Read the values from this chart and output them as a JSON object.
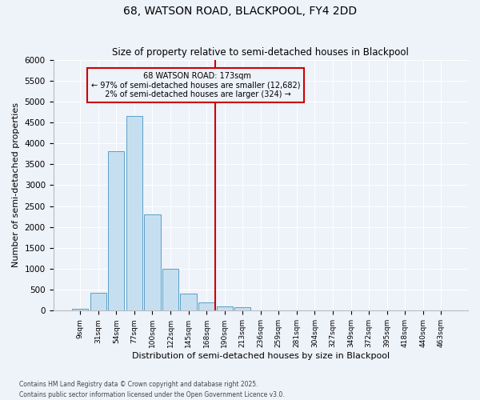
{
  "title": "68, WATSON ROAD, BLACKPOOL, FY4 2DD",
  "subtitle": "Size of property relative to semi-detached houses in Blackpool",
  "xlabel": "Distribution of semi-detached houses by size in Blackpool",
  "ylabel": "Number of semi-detached properties",
  "footnote": "Contains HM Land Registry data © Crown copyright and database right 2025.\nContains public sector information licensed under the Open Government Licence v3.0.",
  "bin_labels": [
    "9sqm",
    "31sqm",
    "54sqm",
    "77sqm",
    "100sqm",
    "122sqm",
    "145sqm",
    "168sqm",
    "190sqm",
    "213sqm",
    "236sqm",
    "259sqm",
    "281sqm",
    "304sqm",
    "327sqm",
    "349sqm",
    "372sqm",
    "395sqm",
    "418sqm",
    "440sqm",
    "463sqm"
  ],
  "bar_values": [
    50,
    430,
    3820,
    4650,
    2300,
    1000,
    400,
    200,
    100,
    80,
    0,
    0,
    0,
    0,
    0,
    0,
    0,
    0,
    0,
    0,
    0
  ],
  "property_bin_index": 7,
  "vline_label": "68 WATSON ROAD: 173sqm",
  "pct_smaller": 97,
  "count_smaller": 12682,
  "pct_larger": 2,
  "count_larger": 324,
  "bar_color": "#c6dff0",
  "bar_edge_color": "#5a9fc8",
  "vline_color": "#cc0000",
  "annotation_box_color": "#cc0000",
  "background_color": "#eef2f9",
  "ylim": [
    0,
    6000
  ],
  "yticks": [
    0,
    500,
    1000,
    1500,
    2000,
    2500,
    3000,
    3500,
    4000,
    4500,
    5000,
    5500,
    6000
  ]
}
